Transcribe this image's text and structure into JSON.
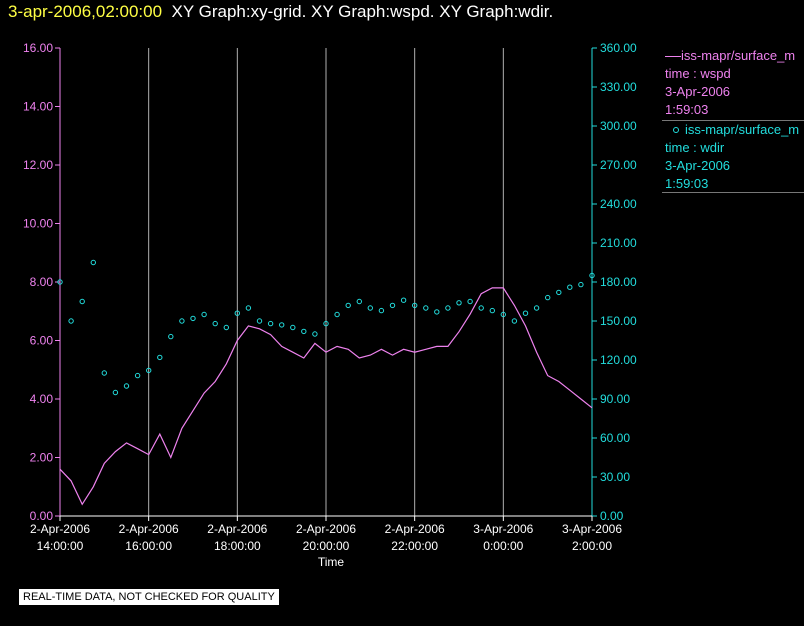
{
  "header": {
    "timestamp": "3-apr-2006,02:00:00",
    "titles": "XY Graph:xy-grid.  XY Graph:wspd.  XY Graph:wdir."
  },
  "colors": {
    "wspd": "#ee82ee",
    "wdir": "#22dddd",
    "axis_left": "#ee82ee",
    "axis_right": "#22dddd",
    "grid": "#b0b0b0",
    "timestamp": "#ffff44"
  },
  "legend": {
    "wspd": {
      "series": "iss-mapr/surface_m",
      "var": "time : wspd",
      "date": "3-Apr-2006",
      "time": "1:59:03"
    },
    "wdir": {
      "series": "iss-mapr/surface_m",
      "var": "time : wdir",
      "date": "3-Apr-2006",
      "time": "1:59:03"
    }
  },
  "notice": "REAL-TIME DATA, NOT CHECKED FOR QUALITY",
  "chart_data": {
    "type": "line",
    "xlabel": "Time",
    "x_ticks": [
      {
        "hours": 0,
        "date": "2-Apr-2006",
        "time": "14:00:00"
      },
      {
        "hours": 2,
        "date": "2-Apr-2006",
        "time": "16:00:00"
      },
      {
        "hours": 4,
        "date": "2-Apr-2006",
        "time": "18:00:00"
      },
      {
        "hours": 6,
        "date": "2-Apr-2006",
        "time": "20:00:00"
      },
      {
        "hours": 8,
        "date": "2-Apr-2006",
        "time": "22:00:00"
      },
      {
        "hours": 10,
        "date": "3-Apr-2006",
        "time": "0:00:00"
      },
      {
        "hours": 12,
        "date": "3-Apr-2006",
        "time": "2:00:00"
      }
    ],
    "xlim_hours": [
      0,
      12
    ],
    "y_left": {
      "label": "wspd",
      "lim": [
        0,
        16
      ],
      "ticks": [
        "0.00",
        "2.00",
        "4.00",
        "6.00",
        "8.00",
        "10.00",
        "12.00",
        "14.00",
        "16.00"
      ]
    },
    "y_right": {
      "label": "wdir",
      "lim": [
        0,
        360
      ],
      "ticks": [
        "0.00",
        "30.00",
        "60.00",
        "90.00",
        "120.00",
        "150.00",
        "180.00",
        "210.00",
        "240.00",
        "270.00",
        "300.00",
        "330.00",
        "360.00"
      ]
    },
    "series": [
      {
        "name": "wspd",
        "axis": "left",
        "style": "line",
        "hours": [
          0,
          0.25,
          0.5,
          0.75,
          1,
          1.25,
          1.5,
          1.75,
          2,
          2.25,
          2.5,
          2.75,
          3,
          3.25,
          3.5,
          3.75,
          4,
          4.25,
          4.5,
          4.75,
          5,
          5.25,
          5.5,
          5.75,
          6,
          6.25,
          6.5,
          6.75,
          7,
          7.25,
          7.5,
          7.75,
          8,
          8.25,
          8.5,
          8.75,
          9,
          9.25,
          9.5,
          9.75,
          10,
          10.25,
          10.5,
          10.75,
          11,
          11.25,
          11.5,
          11.75,
          12
        ],
        "values": [
          1.6,
          1.2,
          0.4,
          1.0,
          1.8,
          2.2,
          2.5,
          2.3,
          2.1,
          2.8,
          2.0,
          3.0,
          3.6,
          4.2,
          4.6,
          5.2,
          6.0,
          6.5,
          6.4,
          6.2,
          5.8,
          5.6,
          5.4,
          5.9,
          5.6,
          5.8,
          5.7,
          5.4,
          5.5,
          5.7,
          5.5,
          5.7,
          5.6,
          5.7,
          5.8,
          5.8,
          6.3,
          6.9,
          7.6,
          7.8,
          7.8,
          7.2,
          6.5,
          5.6,
          4.8,
          4.6,
          4.3,
          4.0,
          3.7
        ]
      },
      {
        "name": "wdir",
        "axis": "right",
        "style": "scatter",
        "hours": [
          0,
          0.25,
          0.5,
          0.75,
          1,
          1.25,
          1.5,
          1.75,
          2,
          2.25,
          2.5,
          2.75,
          3,
          3.25,
          3.5,
          3.75,
          4,
          4.25,
          4.5,
          4.75,
          5,
          5.25,
          5.5,
          5.75,
          6,
          6.25,
          6.5,
          6.75,
          7,
          7.25,
          7.5,
          7.75,
          8,
          8.25,
          8.5,
          8.75,
          9,
          9.25,
          9.5,
          9.75,
          10,
          10.25,
          10.5,
          10.75,
          11,
          11.25,
          11.5,
          11.75,
          12
        ],
        "values": [
          180,
          150,
          165,
          195,
          110,
          95,
          100,
          108,
          112,
          122,
          138,
          150,
          152,
          155,
          148,
          145,
          156,
          160,
          150,
          148,
          147,
          145,
          142,
          140,
          148,
          155,
          162,
          165,
          160,
          158,
          162,
          166,
          162,
          160,
          157,
          160,
          164,
          165,
          160,
          158,
          155,
          150,
          156,
          160,
          168,
          172,
          176,
          178,
          185
        ]
      }
    ]
  }
}
